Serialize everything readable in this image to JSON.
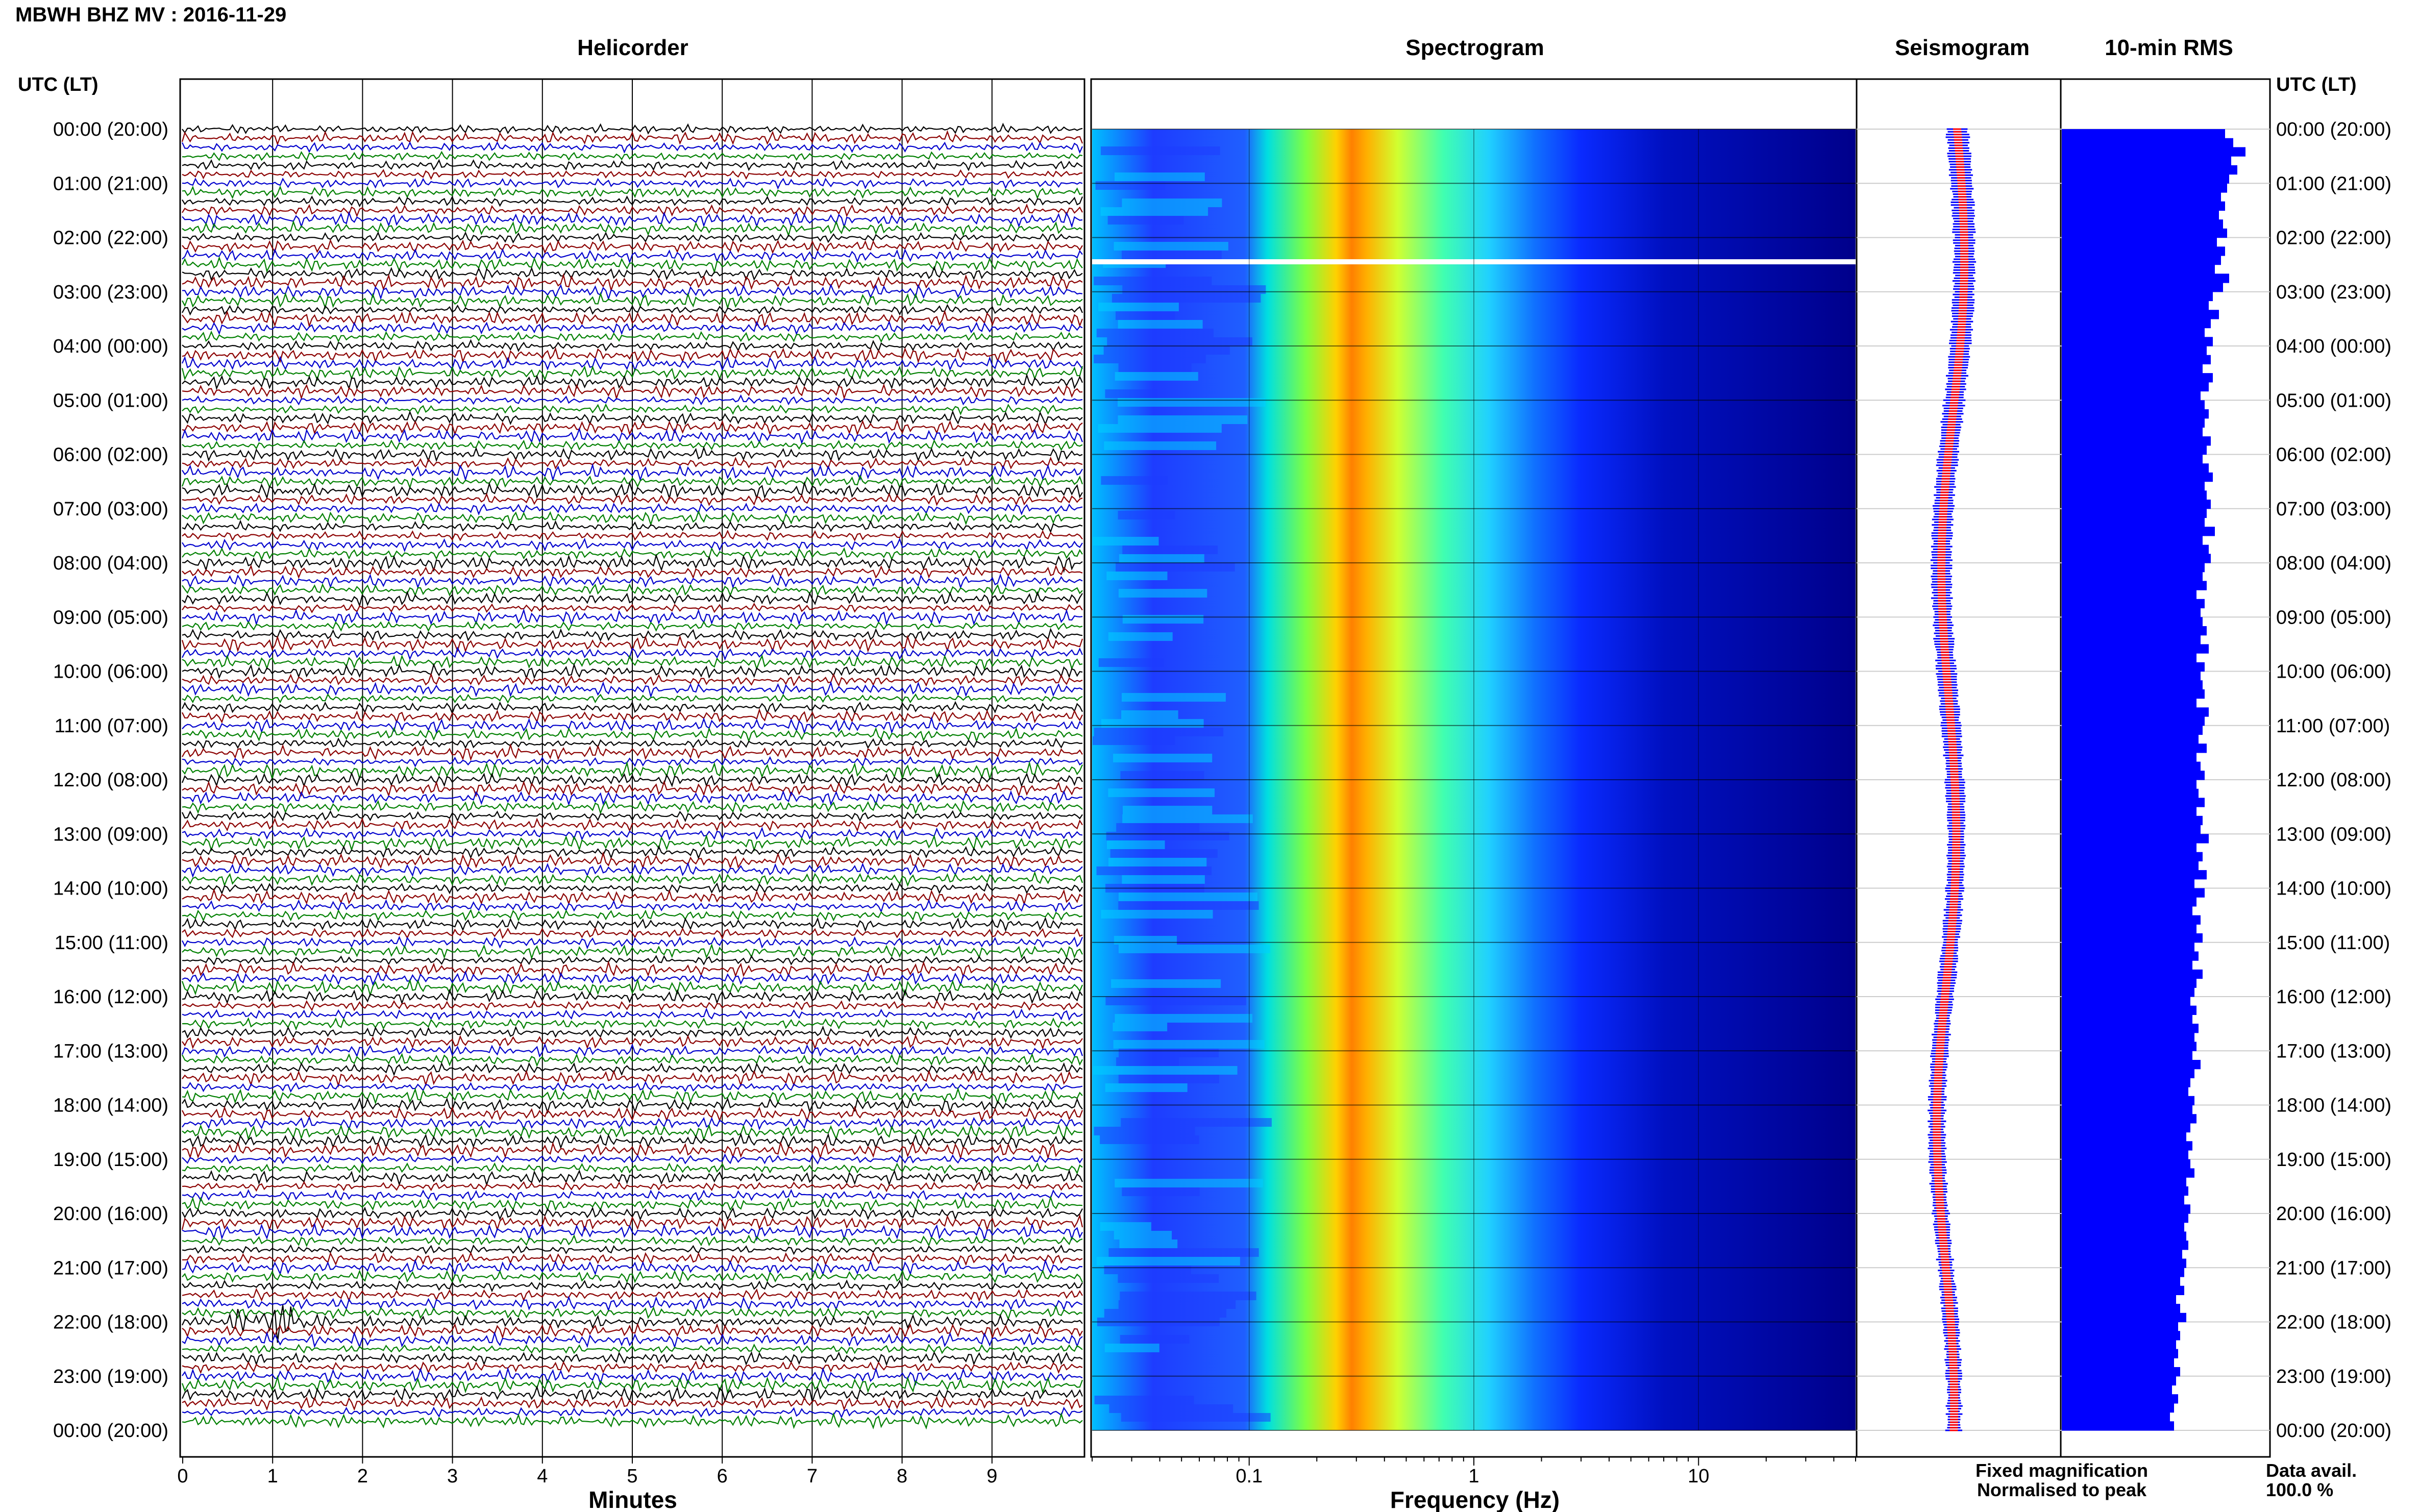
{
  "header": {
    "title": "MBWH BHZ MV : 2016-11-29"
  },
  "panels": {
    "helicorder": "Helicorder",
    "spectrogram": "Spectrogram",
    "seismogram": "Seismogram",
    "rms": "10-min RMS"
  },
  "axis_titles": {
    "left": "UTC (LT)",
    "right": "UTC (LT)"
  },
  "time_labels": [
    "00:00 (20:00)",
    "01:00 (21:00)",
    "02:00 (22:00)",
    "03:00 (23:00)",
    "04:00 (00:00)",
    "05:00 (01:00)",
    "06:00 (02:00)",
    "07:00 (03:00)",
    "08:00 (04:00)",
    "09:00 (05:00)",
    "10:00 (06:00)",
    "11:00 (07:00)",
    "12:00 (08:00)",
    "13:00 (09:00)",
    "14:00 (10:00)",
    "15:00 (11:00)",
    "16:00 (12:00)",
    "17:00 (13:00)",
    "18:00 (14:00)",
    "19:00 (15:00)",
    "20:00 (16:00)",
    "21:00 (17:00)",
    "22:00 (18:00)",
    "23:00 (19:00)",
    "00:00 (20:00)"
  ],
  "legend": {
    "fixed": "Fixed magnification",
    "normalised": "Normalised to peak",
    "fixed_color": "#0000ff",
    "normalised_color": "#ff0000"
  },
  "data_avail": {
    "label": "Data avail.",
    "value": "100.0 %"
  },
  "colors": {
    "trace_cycle": [
      "#000000",
      "#8b0000",
      "#0000cd",
      "#008000"
    ],
    "rms_bar": "#0000ff",
    "spectrogram_low": "#00008b",
    "spectrogram_high": "#ff0000"
  },
  "chart_data": [
    {
      "type": "line",
      "name": "helicorder",
      "title": "Helicorder",
      "xlabel": "Minutes",
      "x_ticks": [
        "0",
        "1",
        "2",
        "3",
        "4",
        "5",
        "6",
        "7",
        "8",
        "9"
      ],
      "xlim": [
        0,
        10
      ],
      "rows_per_hour": 6,
      "hours": 24,
      "event": {
        "utc_time": "22:00",
        "minute_start": 0.3,
        "minute_end": 1.6
      }
    },
    {
      "type": "heatmap",
      "name": "spectrogram",
      "title": "Spectrogram",
      "xlabel": "Frequency (Hz)",
      "x_scale": "log",
      "x_ticks": [
        "0.1",
        "1",
        "10"
      ],
      "xlim": [
        0.02,
        50
      ],
      "peak_frequency_hz": 0.35,
      "gap_utc": "02:20"
    },
    {
      "type": "line",
      "name": "seismogram",
      "title": "Seismogram",
      "series": [
        "Fixed magnification",
        "Normalised to peak"
      ]
    },
    {
      "type": "bar",
      "name": "rms",
      "title": "10-min RMS",
      "orientation": "horizontal",
      "values": [
        0.8,
        0.84,
        0.9,
        0.83,
        0.86,
        0.82,
        0.81,
        0.78,
        0.8,
        0.77,
        0.79,
        0.81,
        0.76,
        0.8,
        0.78,
        0.75,
        0.82,
        0.79,
        0.74,
        0.72,
        0.77,
        0.73,
        0.7,
        0.74,
        0.71,
        0.73,
        0.69,
        0.74,
        0.72,
        0.68,
        0.7,
        0.72,
        0.7,
        0.69,
        0.73,
        0.71,
        0.69,
        0.72,
        0.74,
        0.7,
        0.71,
        0.73,
        0.71,
        0.7,
        0.75,
        0.69,
        0.72,
        0.73,
        0.7,
        0.69,
        0.71,
        0.66,
        0.7,
        0.68,
        0.69,
        0.71,
        0.68,
        0.72,
        0.66,
        0.7,
        0.68,
        0.69,
        0.7,
        0.66,
        0.72,
        0.7,
        0.69,
        0.67,
        0.71,
        0.66,
        0.68,
        0.7,
        0.66,
        0.67,
        0.7,
        0.66,
        0.69,
        0.68,
        0.72,
        0.66,
        0.69,
        0.67,
        0.71,
        0.65,
        0.7,
        0.66,
        0.64,
        0.68,
        0.66,
        0.69,
        0.65,
        0.67,
        0.64,
        0.69,
        0.66,
        0.65,
        0.63,
        0.66,
        0.64,
        0.67,
        0.65,
        0.66,
        0.64,
        0.68,
        0.65,
        0.63,
        0.62,
        0.65,
        0.64,
        0.66,
        0.63,
        0.61,
        0.64,
        0.62,
        0.63,
        0.65,
        0.61,
        0.62,
        0.6,
        0.63,
        0.62,
        0.6,
        0.61,
        0.62,
        0.59,
        0.61,
        0.6,
        0.58,
        0.6,
        0.56,
        0.58,
        0.61,
        0.57,
        0.58,
        0.56,
        0.57,
        0.55,
        0.58,
        0.56,
        0.54,
        0.57,
        0.55,
        0.53,
        0.55
      ]
    }
  ]
}
